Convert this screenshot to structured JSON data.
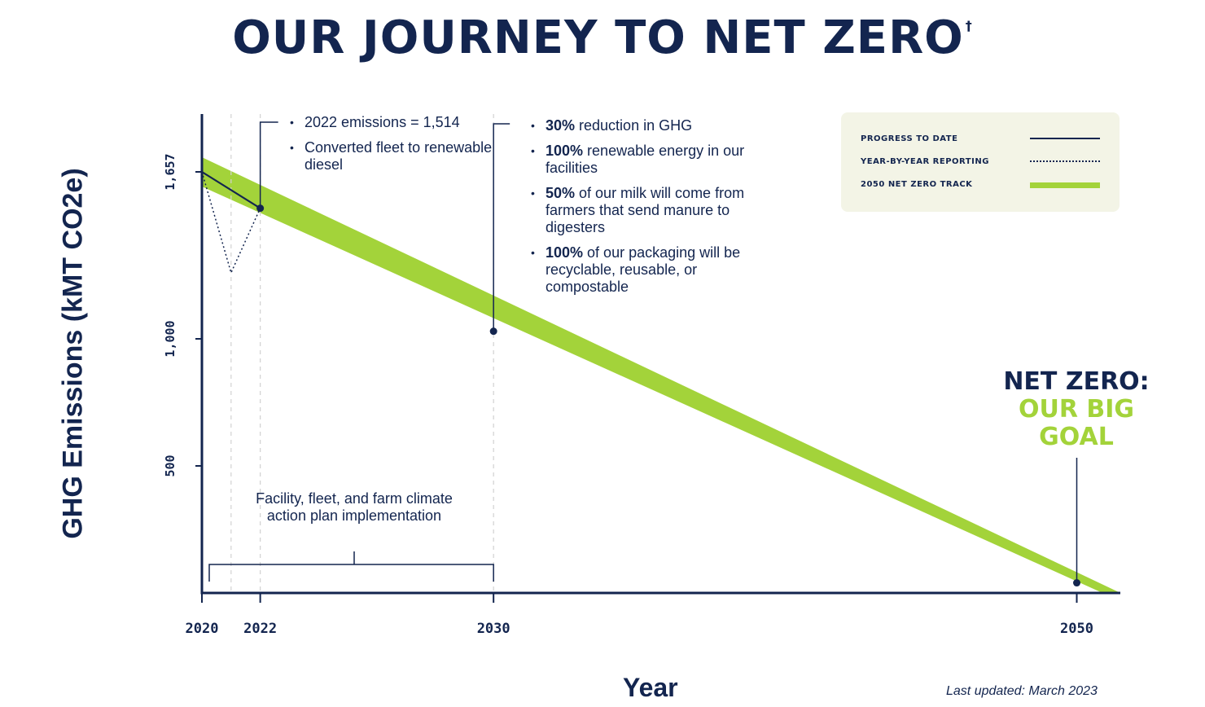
{
  "title": "OUR JOURNEY TO NET ZERO",
  "title_mark": "†",
  "updated": "Last updated: March 2023",
  "annotations": {
    "a2022": [
      "2022 emissions = 1,514",
      "Converted fleet to renewable diesel"
    ],
    "a2030": [
      {
        "bold": "30%",
        "rest": " reduction in GHG"
      },
      {
        "bold": "100%",
        "rest": " renewable energy in our facilities"
      },
      {
        "bold": "50%",
        "rest": " of our milk will come from farmers that send manure to digesters"
      },
      {
        "bold": "100%",
        "rest": " of our packaging will be recyclable, reusable, or compostable"
      }
    ],
    "bracket": "Facility, fleet, and farm climate action plan implementation"
  },
  "net_zero": {
    "line1": "NET ZERO:",
    "line2": "OUR BIG GOAL"
  },
  "legend": [
    {
      "label": "PROGRESS TO DATE",
      "style": "solid"
    },
    {
      "label": "YEAR-BY-YEAR REPORTING",
      "style": "dotted"
    },
    {
      "label": "2050 NET ZERO TRACK",
      "style": "band"
    }
  ],
  "colors": {
    "navy": "#13254f",
    "green": "#a3d33a",
    "legend_bg": "#f3f4e6"
  },
  "chart_data": {
    "type": "line",
    "title": "OUR JOURNEY TO NET ZERO",
    "xlabel": "Year",
    "ylabel": "GHG Emissions (kMT CO2e)",
    "x_ticks": [
      2020,
      2022,
      2030,
      2050
    ],
    "y_ticks": [
      {
        "value": 500,
        "label": "500"
      },
      {
        "value": 1000,
        "label": "1,000"
      },
      {
        "value": 1657,
        "label": "1,657"
      }
    ],
    "xlim": [
      2020,
      2051.5
    ],
    "ylim": [
      0,
      1950
    ],
    "grid": false,
    "legend_position": "top-right",
    "series": [
      {
        "name": "PROGRESS TO DATE",
        "style": "solid",
        "x": [
          2020,
          2022
        ],
        "y": [
          1657,
          1514
        ]
      },
      {
        "name": "YEAR-BY-YEAR REPORTING",
        "style": "dotted",
        "x": [
          2020,
          2021,
          2022
        ],
        "y": [
          1657,
          1260,
          1514
        ]
      },
      {
        "name": "2050 NET ZERO TRACK",
        "style": "band",
        "x": [
          2020,
          2030,
          2051.5
        ],
        "y": [
          1657,
          1030,
          0
        ]
      }
    ],
    "points": [
      {
        "x": 2022,
        "y": 1514
      },
      {
        "x": 2030,
        "y": 1030
      },
      {
        "x": 2050,
        "y": 40
      }
    ]
  }
}
